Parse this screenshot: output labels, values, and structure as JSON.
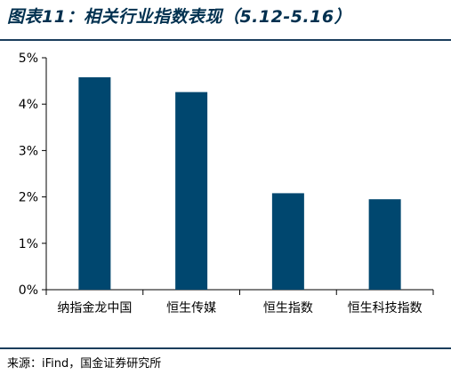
{
  "header": {
    "title": "图表11：相关行业指数表现（5.12-5.16）"
  },
  "footer": {
    "source": "来源：iFind，国金证券研究所"
  },
  "colors": {
    "bar": "#00476f",
    "accent": "#00304f",
    "rule": "#1a3d5c"
  },
  "chart_data": {
    "type": "bar",
    "title": "",
    "xlabel": "",
    "ylabel": "",
    "categories": [
      "纳指金龙中国",
      "恒生传媒",
      "恒生指数",
      "恒生科技指数"
    ],
    "values": [
      4.58,
      4.26,
      2.08,
      1.95
    ],
    "unit": "%",
    "ylim": [
      0,
      5
    ],
    "yticks": [
      "0%",
      "1%",
      "2%",
      "3%",
      "4%",
      "5%"
    ],
    "grid": false,
    "legend": "none"
  }
}
